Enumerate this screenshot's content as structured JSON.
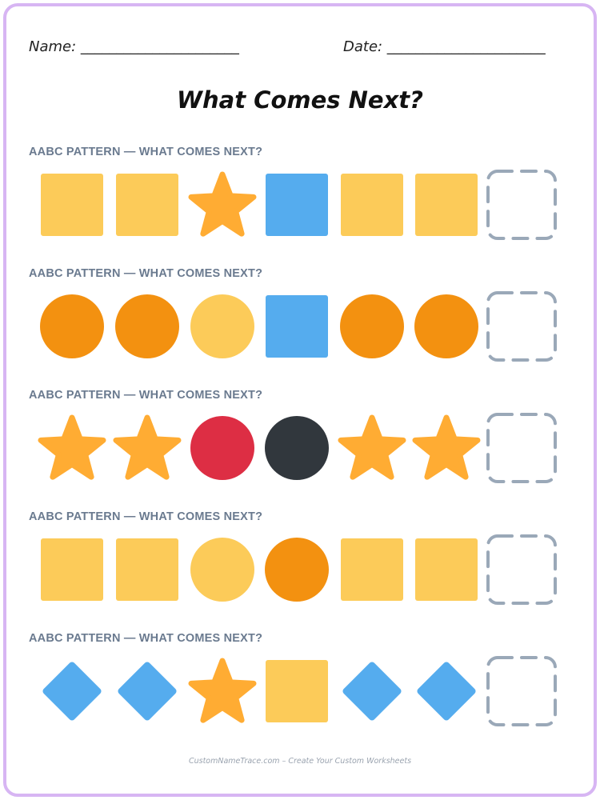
{
  "header": {
    "name_label": "Name: ______________________",
    "date_label": "Date: ______________________"
  },
  "title": "What Comes Next?",
  "colors": {
    "yellow": "#fccb59",
    "orange": "#f39110",
    "star": "#ffac33",
    "blue": "#55acee",
    "red": "#dd2e44",
    "dark": "#31373d",
    "dashed_box": "#9aa8b8",
    "label": "#6a7a8f",
    "border": "#d7b5f3"
  },
  "rows": [
    {
      "label": "AABC PATTERN — WHAT COMES NEXT?",
      "items": [
        {
          "shape": "square",
          "color": "yellow"
        },
        {
          "shape": "square",
          "color": "yellow"
        },
        {
          "shape": "star",
          "color": "star"
        },
        {
          "shape": "square",
          "color": "blue"
        },
        {
          "shape": "square",
          "color": "yellow"
        },
        {
          "shape": "square",
          "color": "yellow"
        },
        {
          "shape": "blank",
          "color": "dashed_box"
        }
      ]
    },
    {
      "label": "AABC PATTERN — WHAT COMES NEXT?",
      "items": [
        {
          "shape": "circle",
          "color": "orange"
        },
        {
          "shape": "circle",
          "color": "orange"
        },
        {
          "shape": "circle",
          "color": "yellow"
        },
        {
          "shape": "square",
          "color": "blue"
        },
        {
          "shape": "circle",
          "color": "orange"
        },
        {
          "shape": "circle",
          "color": "orange"
        },
        {
          "shape": "blank",
          "color": "dashed_box"
        }
      ]
    },
    {
      "label": "AABC PATTERN — WHAT COMES NEXT?",
      "items": [
        {
          "shape": "star",
          "color": "star"
        },
        {
          "shape": "star",
          "color": "star"
        },
        {
          "shape": "circle",
          "color": "red"
        },
        {
          "shape": "circle",
          "color": "dark"
        },
        {
          "shape": "star",
          "color": "star"
        },
        {
          "shape": "star",
          "color": "star"
        },
        {
          "shape": "blank",
          "color": "dashed_box"
        }
      ]
    },
    {
      "label": "AABC PATTERN — WHAT COMES NEXT?",
      "items": [
        {
          "shape": "square",
          "color": "yellow"
        },
        {
          "shape": "square",
          "color": "yellow"
        },
        {
          "shape": "circle",
          "color": "yellow"
        },
        {
          "shape": "circle",
          "color": "orange"
        },
        {
          "shape": "square",
          "color": "yellow"
        },
        {
          "shape": "square",
          "color": "yellow"
        },
        {
          "shape": "blank",
          "color": "dashed_box"
        }
      ]
    },
    {
      "label": "AABC PATTERN — WHAT COMES NEXT?",
      "items": [
        {
          "shape": "diamond",
          "color": "blue"
        },
        {
          "shape": "diamond",
          "color": "blue"
        },
        {
          "shape": "star",
          "color": "star"
        },
        {
          "shape": "square",
          "color": "yellow"
        },
        {
          "shape": "diamond",
          "color": "blue"
        },
        {
          "shape": "diamond",
          "color": "blue"
        },
        {
          "shape": "blank",
          "color": "dashed_box"
        }
      ]
    }
  ],
  "footer": "CustomNameTrace.com – Create Your Custom Worksheets"
}
